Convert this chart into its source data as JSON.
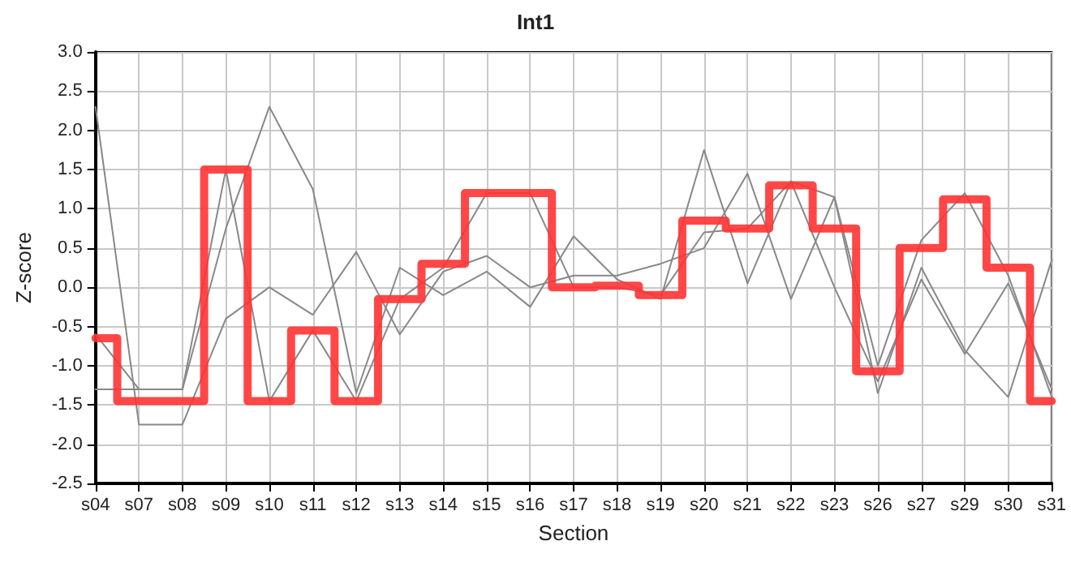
{
  "chart_data": {
    "type": "line",
    "title": "Int1",
    "xlabel": "Section",
    "ylabel": "Z-score",
    "categories": [
      "s04",
      "s07",
      "s08",
      "s09",
      "s10",
      "s11",
      "s12",
      "s13",
      "s14",
      "s15",
      "s16",
      "s17",
      "s18",
      "s19",
      "s20",
      "s21",
      "s22",
      "s23",
      "s26",
      "s27",
      "s29",
      "s30",
      "s31"
    ],
    "series": [
      {
        "color": "#888888",
        "values": [
          2.3,
          -1.75,
          -1.75,
          -0.4,
          0.0,
          -0.35,
          0.45,
          -0.6,
          0.2,
          0.4,
          0.0,
          0.15,
          0.15,
          0.3,
          0.5,
          1.45,
          -0.15,
          1.15,
          -1.35,
          0.25,
          -0.8,
          -1.4,
          0.35
        ]
      },
      {
        "color": "#888888",
        "values": [
          -0.6,
          -1.3,
          -1.3,
          0.75,
          2.3,
          1.25,
          -1.35,
          0.25,
          -0.1,
          0.2,
          -0.25,
          0.65,
          0.1,
          -0.15,
          1.75,
          0.05,
          1.35,
          0.0,
          -1.2,
          0.1,
          -0.85,
          0.05,
          -1.3
        ]
      },
      {
        "color": "#888888",
        "values": [
          -1.3,
          -1.3,
          -1.3,
          1.5,
          -1.45,
          -0.55,
          -1.45,
          -0.15,
          0.25,
          1.2,
          1.2,
          0.0,
          0.0,
          -0.1,
          0.7,
          0.75,
          1.35,
          1.15,
          -1.0,
          0.6,
          1.2,
          0.15,
          -1.4
        ]
      },
      {
        "type": "step",
        "color": "#ff3333",
        "values": [
          -0.65,
          -1.45,
          -1.45,
          1.5,
          -1.45,
          -0.55,
          -1.45,
          -0.15,
          0.3,
          1.2,
          1.2,
          0.0,
          0.02,
          -0.1,
          0.85,
          0.75,
          1.3,
          0.75,
          -1.07,
          0.5,
          1.12,
          0.25,
          -1.45
        ]
      }
    ],
    "ylim": [
      -2.5,
      3.0
    ],
    "yticks": [
      {
        "value": -2.5,
        "label": "-2.5"
      },
      {
        "value": -2,
        "label": "-2.0"
      },
      {
        "value": -1.5,
        "label": "-1.5"
      },
      {
        "value": -1,
        "label": "-1.0"
      },
      {
        "value": -0.5,
        "label": "-0.5"
      },
      {
        "value": 0,
        "label": "0.0"
      },
      {
        "value": 0.5,
        "label": "0.5"
      },
      {
        "value": 1,
        "label": "1.0"
      },
      {
        "value": 1.5,
        "label": "1.5"
      },
      {
        "value": 2,
        "label": "2.0"
      },
      {
        "value": 2.5,
        "label": "2.5"
      },
      {
        "value": 3,
        "label": "3.0"
      }
    ],
    "grid": true,
    "marker": "none",
    "line_style": "solid"
  }
}
